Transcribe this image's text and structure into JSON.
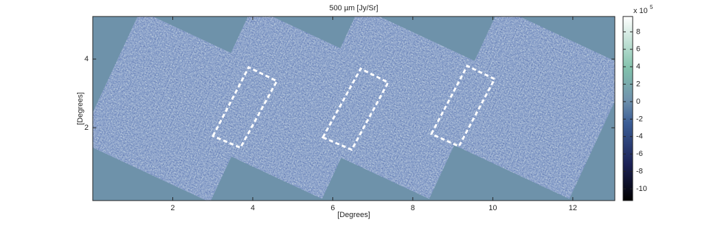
{
  "chart_data": {
    "type": "image",
    "title": "500 µm  [Jy/Sr]",
    "xlabel": "[Degrees]",
    "ylabel": "[Degrees]",
    "xlim": [
      0,
      13.05
    ],
    "xticks": [
      2,
      4,
      6,
      8,
      10,
      12
    ],
    "ylim": [
      -0.12,
      5.24
    ],
    "yticks": [
      2,
      4
    ],
    "colorbar": {
      "clim": [
        -11.34,
        9.76
      ],
      "ticks": [
        -10,
        -8,
        -6,
        -4,
        -2,
        0,
        2,
        4,
        6,
        8
      ],
      "multiplier": "x 10",
      "exponent": "5"
    }
  }
}
